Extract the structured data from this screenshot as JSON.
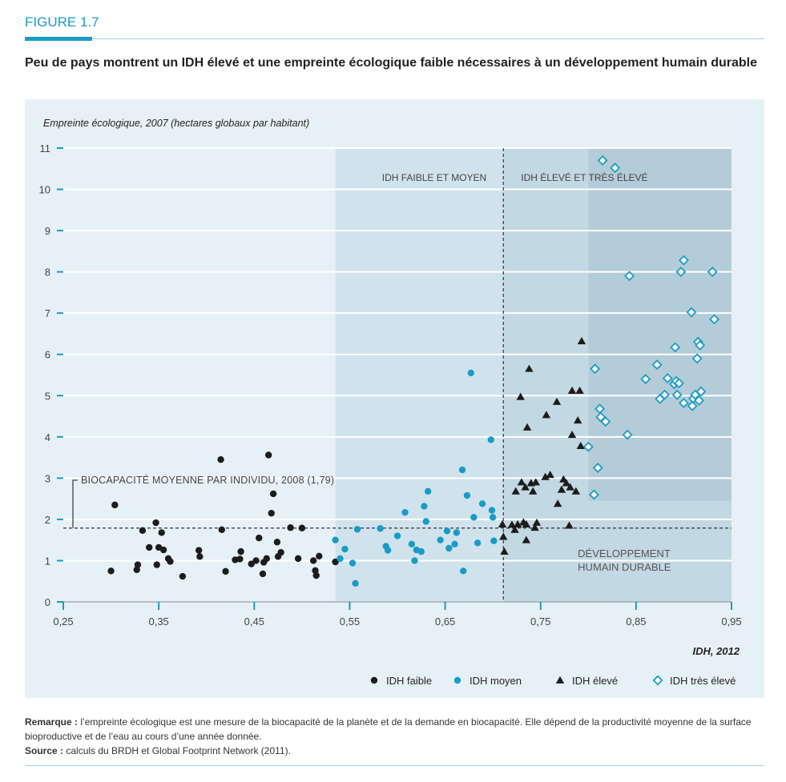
{
  "figure_label": "FIGURE 1.7",
  "title": "Peu de pays montrent un IDH élevé et une empreinte écologique faible nécessaires à un développement humain durable",
  "note": {
    "remark_label": "Remarque :",
    "remark_text": " l’empreinte écologique est une mesure de la biocapacité de la planète et de la demande en biocapacité. Elle dépend de la productivité moyenne de la surface bioproductive et de l’eau au cours d’une année donnée.",
    "source_label": "Source :",
    "source_text": " calculs du BRDH et Global Footprint Network (2011)."
  },
  "chart_data": {
    "type": "scatter",
    "ylabel": "Empreinte écologique, 2007 (hectares globaux par habitant)",
    "xlabel": "IDH, 2012",
    "xlim": [
      0.25,
      0.95
    ],
    "ylim": [
      0,
      11
    ],
    "x_ticks": [
      0.25,
      0.35,
      0.45,
      0.55,
      0.65,
      0.75,
      0.85,
      0.95
    ],
    "x_tick_labels": [
      "0,25",
      "0,35",
      "0,45",
      "0,55",
      "0,65",
      "0,75",
      "0,85",
      "0,95"
    ],
    "y_ticks": [
      0,
      1,
      2,
      3,
      4,
      5,
      6,
      7,
      8,
      9,
      10,
      11
    ],
    "y_tick_labels": [
      "0",
      "1",
      "2",
      "3",
      "4",
      "5",
      "6",
      "7",
      "8",
      "9",
      "10",
      "11"
    ],
    "grid": "horizontal",
    "legend_position": "bottom-right",
    "colors": {
      "panel_bg": "#e6f1f7",
      "band_medium": "#d0e3ec",
      "band_high": "#c2d8e3",
      "band_very_high": "#b3ccd8",
      "low": "#1c1c1c",
      "medium": "#1a9bc7",
      "high": "#1c1c1c",
      "very_high": "#1a9bc7",
      "accent": "#1a9bc7"
    },
    "bands": [
      {
        "from": 0.535,
        "to": 0.711,
        "ymax": 11
      },
      {
        "from": 0.711,
        "to": 0.8,
        "ymax": 11
      },
      {
        "from": 0.8,
        "to": 0.95,
        "ymax": 2.45
      },
      {
        "from": 0.8,
        "to": 0.95,
        "ymin": 2.45,
        "ymax": 11,
        "darker": true
      }
    ],
    "reference_lines": {
      "biocapacity": 1.79,
      "idh_threshold": 0.711
    },
    "annotations": {
      "biocapacity_label": "BIOCAPACITÉ MOYENNE PAR INDIVIDU, 2008 (1,79)",
      "low_medium_label": "IDH FAIBLE ET MOYEN",
      "high_veryhigh_label": "IDH ÉLEVÉ ET TRÈS ÉLEVÉ",
      "sustainable_label_line1": "DÉVELOPPEMENT",
      "sustainable_label_line2": "HUMAIN DURABLE"
    },
    "series": [
      {
        "name": "IDH faible",
        "marker": "circle",
        "points": [
          [
            0.3,
            0.75
          ],
          [
            0.304,
            2.35
          ],
          [
            0.327,
            0.78
          ],
          [
            0.328,
            0.9
          ],
          [
            0.333,
            1.73
          ],
          [
            0.34,
            1.32
          ],
          [
            0.347,
            1.92
          ],
          [
            0.348,
            0.9
          ],
          [
            0.35,
            1.32
          ],
          [
            0.353,
            1.68
          ],
          [
            0.355,
            1.26
          ],
          [
            0.36,
            1.05
          ],
          [
            0.362,
            0.98
          ],
          [
            0.375,
            0.62
          ],
          [
            0.392,
            1.25
          ],
          [
            0.393,
            1.1
          ],
          [
            0.415,
            3.45
          ],
          [
            0.416,
            1.75
          ],
          [
            0.42,
            0.74
          ],
          [
            0.43,
            1.02
          ],
          [
            0.435,
            1.04
          ],
          [
            0.436,
            1.22
          ],
          [
            0.447,
            0.92
          ],
          [
            0.452,
            1.0
          ],
          [
            0.455,
            1.55
          ],
          [
            0.459,
            0.68
          ],
          [
            0.46,
            0.96
          ],
          [
            0.463,
            1.05
          ],
          [
            0.465,
            3.56
          ],
          [
            0.468,
            2.15
          ],
          [
            0.47,
            2.62
          ],
          [
            0.474,
            1.45
          ],
          [
            0.475,
            1.1
          ],
          [
            0.478,
            1.2
          ],
          [
            0.488,
            1.8
          ],
          [
            0.496,
            1.05
          ],
          [
            0.5,
            1.79
          ],
          [
            0.512,
            1.0
          ],
          [
            0.514,
            0.76
          ],
          [
            0.515,
            0.64
          ],
          [
            0.518,
            1.11
          ],
          [
            0.535,
            0.97
          ]
        ]
      },
      {
        "name": "IDH moyen",
        "marker": "circle",
        "points": [
          [
            0.535,
            1.5
          ],
          [
            0.54,
            1.05
          ],
          [
            0.545,
            1.28
          ],
          [
            0.553,
            0.94
          ],
          [
            0.556,
            0.45
          ],
          [
            0.558,
            1.76
          ],
          [
            0.582,
            1.78
          ],
          [
            0.588,
            1.35
          ],
          [
            0.59,
            1.25
          ],
          [
            0.6,
            1.6
          ],
          [
            0.608,
            2.17
          ],
          [
            0.615,
            1.4
          ],
          [
            0.618,
            1.0
          ],
          [
            0.62,
            1.26
          ],
          [
            0.625,
            1.22
          ],
          [
            0.628,
            2.32
          ],
          [
            0.63,
            1.95
          ],
          [
            0.632,
            2.68
          ],
          [
            0.645,
            1.5
          ],
          [
            0.652,
            1.72
          ],
          [
            0.654,
            1.3
          ],
          [
            0.66,
            1.4
          ],
          [
            0.662,
            1.68
          ],
          [
            0.668,
            3.2
          ],
          [
            0.669,
            0.75
          ],
          [
            0.673,
            2.58
          ],
          [
            0.677,
            5.55
          ],
          [
            0.68,
            2.05
          ],
          [
            0.684,
            1.43
          ],
          [
            0.689,
            2.38
          ],
          [
            0.698,
            3.93
          ],
          [
            0.699,
            2.22
          ],
          [
            0.7,
            2.05
          ],
          [
            0.701,
            1.48
          ]
        ]
      },
      {
        "name": "IDH élevé",
        "marker": "triangle",
        "points": [
          [
            0.71,
            1.88
          ],
          [
            0.711,
            1.58
          ],
          [
            0.712,
            1.22
          ],
          [
            0.72,
            1.87
          ],
          [
            0.723,
            1.75
          ],
          [
            0.724,
            2.68
          ],
          [
            0.726,
            1.88
          ],
          [
            0.729,
            4.97
          ],
          [
            0.73,
            2.9
          ],
          [
            0.732,
            1.93
          ],
          [
            0.734,
            2.78
          ],
          [
            0.735,
            1.88
          ],
          [
            0.735,
            1.5
          ],
          [
            0.736,
            4.23
          ],
          [
            0.738,
            5.65
          ],
          [
            0.74,
            2.88
          ],
          [
            0.742,
            2.68
          ],
          [
            0.744,
            1.8
          ],
          [
            0.745,
            2.9
          ],
          [
            0.746,
            1.92
          ],
          [
            0.755,
            3.03
          ],
          [
            0.756,
            4.53
          ],
          [
            0.76,
            3.08
          ],
          [
            0.767,
            4.85
          ],
          [
            0.768,
            2.38
          ],
          [
            0.772,
            2.72
          ],
          [
            0.774,
            2.97
          ],
          [
            0.777,
            2.88
          ],
          [
            0.78,
            1.85
          ],
          [
            0.781,
            2.78
          ],
          [
            0.783,
            5.12
          ],
          [
            0.783,
            4.05
          ],
          [
            0.787,
            2.68
          ],
          [
            0.789,
            4.4
          ],
          [
            0.791,
            5.12
          ],
          [
            0.792,
            3.78
          ],
          [
            0.793,
            6.32
          ]
        ]
      },
      {
        "name": "IDH très élevé",
        "marker": "diamond",
        "points": [
          [
            0.8,
            3.76
          ],
          [
            0.806,
            2.6
          ],
          [
            0.807,
            5.65
          ],
          [
            0.81,
            3.25
          ],
          [
            0.812,
            4.68
          ],
          [
            0.813,
            4.48
          ],
          [
            0.815,
            10.7
          ],
          [
            0.818,
            4.37
          ],
          [
            0.828,
            10.52
          ],
          [
            0.841,
            4.05
          ],
          [
            0.843,
            7.9
          ],
          [
            0.86,
            5.4
          ],
          [
            0.872,
            5.75
          ],
          [
            0.875,
            4.92
          ],
          [
            0.88,
            5.02
          ],
          [
            0.883,
            5.42
          ],
          [
            0.89,
            5.28
          ],
          [
            0.891,
            6.17
          ],
          [
            0.892,
            5.35
          ],
          [
            0.893,
            5.02
          ],
          [
            0.895,
            5.3
          ],
          [
            0.897,
            8.0
          ],
          [
            0.9,
            8.28
          ],
          [
            0.9,
            4.82
          ],
          [
            0.908,
            7.02
          ],
          [
            0.909,
            4.75
          ],
          [
            0.91,
            4.93
          ],
          [
            0.912,
            5.02
          ],
          [
            0.914,
            5.9
          ],
          [
            0.915,
            6.3
          ],
          [
            0.916,
            4.88
          ],
          [
            0.917,
            6.22
          ],
          [
            0.918,
            5.1
          ],
          [
            0.93,
            8.0
          ],
          [
            0.932,
            6.85
          ]
        ]
      }
    ]
  }
}
